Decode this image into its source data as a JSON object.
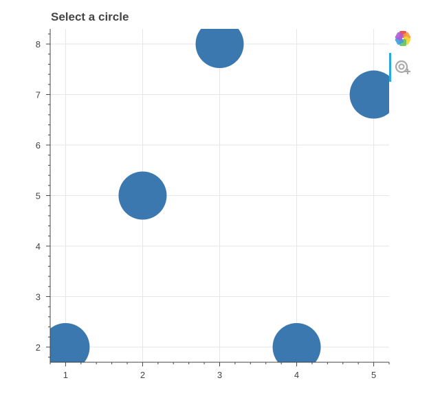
{
  "title": "Select a circle",
  "colors": {
    "circle": "#3a78af",
    "grid": "#e6e6e6",
    "axis": "#444444",
    "active_tool": "#26aae1"
  },
  "toolbar": {
    "items": [
      {
        "name": "bokeh-logo-icon",
        "interactable": false
      },
      {
        "name": "tap-tool-icon",
        "interactable": true,
        "active": true
      }
    ]
  },
  "chart_data": {
    "type": "scatter",
    "title": "Select a circle",
    "x": [
      1,
      2,
      3,
      4,
      5
    ],
    "y": [
      2,
      5,
      8,
      2,
      7
    ],
    "xlim": [
      0.8,
      5.2
    ],
    "ylim": [
      1.7,
      8.3
    ],
    "xticks": [
      1,
      2,
      3,
      4,
      5
    ],
    "yticks": [
      2,
      3,
      4,
      5,
      6,
      7,
      8
    ],
    "xlabel": "",
    "ylabel": "",
    "grid": true,
    "marker_size": 30
  }
}
